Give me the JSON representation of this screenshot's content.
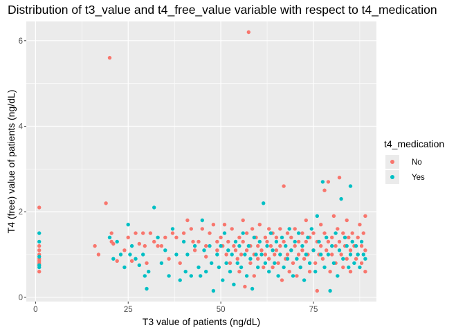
{
  "chart_data": {
    "type": "scatter",
    "title": "Distribution of t3_value and t4_free_value variable with respect to t4_medication",
    "xlabel": "T3 value of patients (ng/dL)",
    "ylabel": "T4 (free) value of patients (ng/dL)",
    "xlim": [
      -2.5,
      92
    ],
    "ylim": [
      -0.1,
      6.45
    ],
    "x_ticks": [
      0,
      25,
      50,
      75
    ],
    "x_tick_labels": [
      "0",
      "25",
      "50",
      "75"
    ],
    "y_ticks": [
      0,
      2,
      4,
      6
    ],
    "y_tick_labels": [
      "0",
      "2",
      "4",
      "6"
    ],
    "grid": true,
    "legend_position": "right",
    "legend_title": "t4_medication",
    "series": [
      {
        "name": "No",
        "color": "#F8766D",
        "points": [
          [
            1,
            2.1
          ],
          [
            1,
            1.2
          ],
          [
            1,
            1.1
          ],
          [
            1,
            1.0
          ],
          [
            1,
            0.9
          ],
          [
            1,
            0.85
          ],
          [
            1,
            0.8
          ],
          [
            1,
            0.75
          ],
          [
            1,
            0.6
          ],
          [
            16,
            1.2
          ],
          [
            17,
            1.0
          ],
          [
            19,
            2.2
          ],
          [
            20,
            5.6
          ],
          [
            20.5,
            1.5
          ],
          [
            20.5,
            1.3
          ],
          [
            21,
            1.25
          ],
          [
            22,
            0.85
          ],
          [
            24,
            1.1
          ],
          [
            25,
            1.4
          ],
          [
            26,
            0.85
          ],
          [
            27,
            1.5
          ],
          [
            28,
            1.25
          ],
          [
            29,
            1.5
          ],
          [
            29.5,
            1.2
          ],
          [
            30,
            0.8
          ],
          [
            31,
            1.5
          ],
          [
            32,
            1.3
          ],
          [
            33,
            1.2
          ],
          [
            34,
            1.2
          ],
          [
            35,
            1.4
          ],
          [
            36,
            0.9
          ],
          [
            37,
            1.5
          ],
          [
            38,
            1.4
          ],
          [
            39,
            0.8
          ],
          [
            40,
            1.5
          ],
          [
            41,
            1.8
          ],
          [
            42,
            1.6
          ],
          [
            42.5,
            1.3
          ],
          [
            43,
            1.1
          ],
          [
            44,
            1.3
          ],
          [
            45,
            1.6
          ],
          [
            46,
            1.2
          ],
          [
            46,
            0.95
          ],
          [
            47,
            1.5
          ],
          [
            48,
            1.7
          ],
          [
            49,
            1.3
          ],
          [
            49,
            1.1
          ],
          [
            50,
            1.4
          ],
          [
            50.5,
            1.2
          ],
          [
            51,
            1.7
          ],
          [
            51.5,
            1.0
          ],
          [
            52,
            1.3
          ],
          [
            52.5,
            0.8
          ],
          [
            53,
            1.6
          ],
          [
            53.5,
            1.2
          ],
          [
            54,
            1.1
          ],
          [
            54.5,
            0.9
          ],
          [
            55,
            1.4
          ],
          [
            55,
            0.6
          ],
          [
            55.5,
            1.0
          ],
          [
            56,
            1.8
          ],
          [
            56,
            1.3
          ],
          [
            56.5,
            0.25
          ],
          [
            57,
            1.5
          ],
          [
            57,
            1.1
          ],
          [
            57.5,
            6.2
          ],
          [
            58,
            1.2
          ],
          [
            58,
            0.8
          ],
          [
            58.5,
            1.6
          ],
          [
            59,
            1.0
          ],
          [
            59,
            0.5
          ],
          [
            59.5,
            1.4
          ],
          [
            60,
            1.2
          ],
          [
            60,
            0.9
          ],
          [
            60.5,
            1.7
          ],
          [
            61,
            1.1
          ],
          [
            61.5,
            0.7
          ],
          [
            62,
            1.4
          ],
          [
            62,
            1.0
          ],
          [
            62.5,
            1.3
          ],
          [
            63,
            1.6
          ],
          [
            63,
            0.9
          ],
          [
            63.5,
            1.2
          ],
          [
            64,
            1.5
          ],
          [
            64,
            0.7
          ],
          [
            64.5,
            1.0
          ],
          [
            65,
            1.4
          ],
          [
            65,
            1.1
          ],
          [
            65.5,
            0.8
          ],
          [
            66,
            1.6
          ],
          [
            66,
            1.2
          ],
          [
            66.5,
            0.4
          ],
          [
            67,
            2.6
          ],
          [
            67,
            1.3
          ],
          [
            67.5,
            0.9
          ],
          [
            68,
            1.5
          ],
          [
            68,
            1.0
          ],
          [
            68.5,
            0.6
          ],
          [
            69,
            1.4
          ],
          [
            69,
            1.1
          ],
          [
            69.5,
            0.8
          ],
          [
            70,
            1.6
          ],
          [
            70,
            1.2
          ],
          [
            70.5,
            0.5
          ],
          [
            71,
            1.3
          ],
          [
            71,
            1.0
          ],
          [
            71.5,
            0.7
          ],
          [
            72,
            1.5
          ],
          [
            72,
            1.1
          ],
          [
            72.5,
            0.9
          ],
          [
            73,
            1.3
          ],
          [
            73,
            1.8
          ],
          [
            73.5,
            1.0
          ],
          [
            74,
            1.4
          ],
          [
            74,
            0.6
          ],
          [
            75,
            1.5
          ],
          [
            75,
            1.1
          ],
          [
            75.5,
            0.8
          ],
          [
            76,
            1.3
          ],
          [
            76,
            0.15
          ],
          [
            76.5,
            1.0
          ],
          [
            77,
            1.7
          ],
          [
            77,
            1.2
          ],
          [
            77.5,
            0.9
          ],
          [
            78,
            1.5
          ],
          [
            78,
            2.5
          ],
          [
            78.5,
            1.1
          ],
          [
            79,
            2.7
          ],
          [
            79,
            1.3
          ],
          [
            79.5,
            0.6
          ],
          [
            80,
            1.4
          ],
          [
            80,
            1.0
          ],
          [
            80.5,
            1.9
          ],
          [
            81,
            1.2
          ],
          [
            81,
            0.8
          ],
          [
            81.5,
            1.6
          ],
          [
            82,
            2.8
          ],
          [
            82,
            1.3
          ],
          [
            82.5,
            1.0
          ],
          [
            83,
            1.5
          ],
          [
            83,
            0.7
          ],
          [
            83.5,
            1.2
          ],
          [
            84,
            1.8
          ],
          [
            84,
            0.9
          ],
          [
            84.5,
            1.4
          ],
          [
            85,
            1.1
          ],
          [
            85,
            0.6
          ],
          [
            85.5,
            1.5
          ],
          [
            86,
            1.2
          ],
          [
            86.5,
            0.9
          ],
          [
            87,
            1.4
          ],
          [
            87,
            1.0
          ],
          [
            87.5,
            1.7
          ],
          [
            88,
            1.2
          ],
          [
            88,
            0.8
          ],
          [
            88.5,
            1.5
          ],
          [
            89,
            1.9
          ],
          [
            89,
            1.1
          ],
          [
            89,
            0.6
          ]
        ]
      },
      {
        "name": "Yes",
        "color": "#00BFC4",
        "points": [
          [
            1,
            1.5
          ],
          [
            1,
            1.3
          ],
          [
            1,
            0.95
          ],
          [
            1,
            0.75
          ],
          [
            1,
            0.7
          ],
          [
            20,
            1.4
          ],
          [
            21,
            0.9
          ],
          [
            22,
            1.3
          ],
          [
            23,
            1.0
          ],
          [
            24,
            0.7
          ],
          [
            25,
            1.7
          ],
          [
            25.5,
            1.0
          ],
          [
            26,
            1.2
          ],
          [
            27,
            0.9
          ],
          [
            28,
            0.75
          ],
          [
            29,
            1.0
          ],
          [
            29.5,
            0.5
          ],
          [
            30,
            0.2
          ],
          [
            30.5,
            0.6
          ],
          [
            32,
            2.1
          ],
          [
            33,
            1.4
          ],
          [
            34,
            0.8
          ],
          [
            35,
            1.1
          ],
          [
            36,
            0.5
          ],
          [
            37,
            1.6
          ],
          [
            38,
            1.0
          ],
          [
            39,
            0.4
          ],
          [
            40,
            1.3
          ],
          [
            40.5,
            0.6
          ],
          [
            41,
            1.0
          ],
          [
            42,
            0.5
          ],
          [
            43,
            1.2
          ],
          [
            44,
            0.7
          ],
          [
            44.5,
            0.5
          ],
          [
            45,
            1.8
          ],
          [
            45.5,
            1.1
          ],
          [
            46,
            0.6
          ],
          [
            47,
            1.2
          ],
          [
            47.5,
            0.8
          ],
          [
            48,
            0.15
          ],
          [
            49,
            1.0
          ],
          [
            49.5,
            0.7
          ],
          [
            50,
            1.2
          ],
          [
            50.5,
            0.4
          ],
          [
            51,
            1.5
          ],
          [
            51.5,
            0.8
          ],
          [
            52,
            1.1
          ],
          [
            52.5,
            0.6
          ],
          [
            53,
            1.0
          ],
          [
            53.5,
            0.3
          ],
          [
            54,
            1.3
          ],
          [
            54.5,
            0.8
          ],
          [
            55,
            1.2
          ],
          [
            55.5,
            0.7
          ],
          [
            56,
            1.5
          ],
          [
            56.5,
            1.0
          ],
          [
            57,
            0.5
          ],
          [
            57.5,
            1.2
          ],
          [
            58,
            0.9
          ],
          [
            58.5,
            0.2
          ],
          [
            59,
            1.4
          ],
          [
            59.5,
            1.0
          ],
          [
            60,
            0.7
          ],
          [
            60.5,
            1.3
          ],
          [
            61,
            1.0
          ],
          [
            61.5,
            2.2
          ],
          [
            62,
            0.8
          ],
          [
            62.5,
            1.2
          ],
          [
            63,
            0.6
          ],
          [
            63.5,
            1.5
          ],
          [
            64,
            1.1
          ],
          [
            64.5,
            0.8
          ],
          [
            65,
            1.3
          ],
          [
            65.5,
            0.5
          ],
          [
            66,
            1.0
          ],
          [
            66.5,
            1.4
          ],
          [
            67,
            0.7
          ],
          [
            67.5,
            1.2
          ],
          [
            68,
            0.9
          ],
          [
            68.5,
            1.6
          ],
          [
            69,
            1.1
          ],
          [
            69.5,
            0.5
          ],
          [
            70,
            1.3
          ],
          [
            70.5,
            0.9
          ],
          [
            71,
            1.5
          ],
          [
            71.5,
            0.7
          ],
          [
            72,
            1.2
          ],
          [
            72.5,
            0.4
          ],
          [
            73,
            1.0
          ],
          [
            73.5,
            1.4
          ],
          [
            74,
            0.8
          ],
          [
            74.5,
            1.6
          ],
          [
            75,
            1.1
          ],
          [
            75.5,
            0.6
          ],
          [
            76,
            1.9
          ],
          [
            76.5,
            1.3
          ],
          [
            77,
            1.0
          ],
          [
            77.5,
            2.7
          ],
          [
            78,
            0.7
          ],
          [
            78.5,
            1.4
          ],
          [
            79,
            1.0
          ],
          [
            79.5,
            0.15
          ],
          [
            80,
            1.2
          ],
          [
            80.5,
            0.8
          ],
          [
            81,
            1.5
          ],
          [
            81.5,
            0.5
          ],
          [
            82,
            1.1
          ],
          [
            82.5,
            2.3
          ],
          [
            83,
            0.9
          ],
          [
            83.5,
            1.4
          ],
          [
            84,
            1.2
          ],
          [
            84.5,
            0.7
          ],
          [
            85,
            2.6
          ],
          [
            85,
            1.0
          ],
          [
            85.5,
            1.3
          ],
          [
            86,
            0.8
          ],
          [
            86.5,
            1.2
          ],
          [
            87,
            1.0
          ],
          [
            87.5,
            0.7
          ],
          [
            88,
            1.3
          ],
          [
            88.5,
            1.0
          ],
          [
            89,
            0.9
          ]
        ]
      }
    ]
  }
}
